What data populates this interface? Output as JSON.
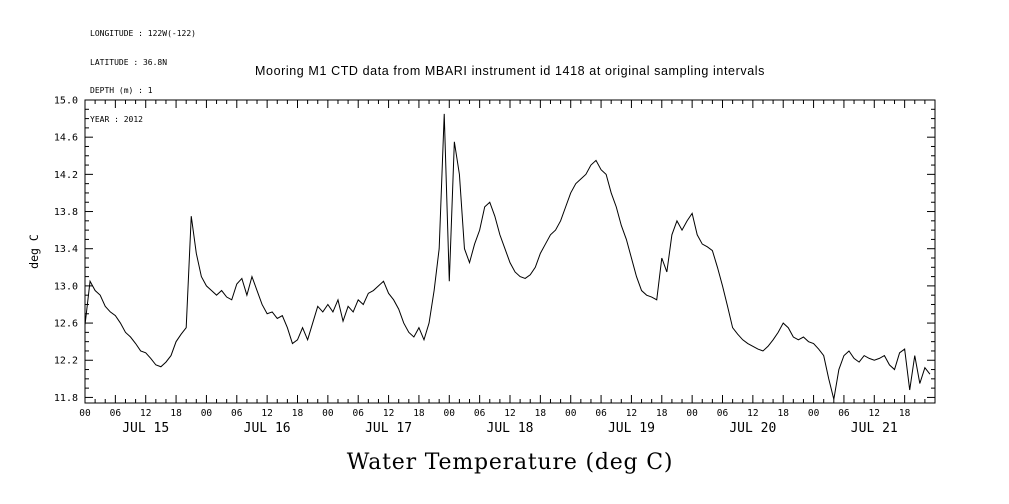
{
  "meta": {
    "longitude": "LONGITUDE : 122W(-122)",
    "latitude": "LATITUDE : 36.8N",
    "depth": "DEPTH (m) : 1",
    "year": "YEAR : 2012"
  },
  "title": "Mooring M1 CTD data from MBARI instrument id 1418 at original sampling intervals",
  "footer_label": "Water Temperature (deg C)",
  "chart_data": {
    "type": "line",
    "title": "Mooring M1 CTD data from MBARI instrument id 1418 at original sampling intervals",
    "series_name": "Water Temperature",
    "xlabel": "Water Temperature (deg C)",
    "ylabel": "deg C",
    "ylim": [
      11.74,
      15.0
    ],
    "yticks": [
      15.0,
      14.6,
      14.2,
      13.8,
      13.4,
      13.0,
      12.6,
      12.2,
      11.8
    ],
    "y_minor_step": 0.1,
    "x_unit": "hours since JUL 15 00:00",
    "x_range": [
      0,
      168
    ],
    "x_start": 0,
    "x_step": 1,
    "x_minor_tick_hours": 2,
    "x_major_tick_hours": 6,
    "hour_labels": [
      "00",
      "06",
      "12",
      "18"
    ],
    "days": [
      "JUL 15",
      "JUL 16",
      "JUL 17",
      "JUL 18",
      "JUL 19",
      "JUL 20",
      "JUL 21"
    ],
    "line_color": "#000000",
    "background": "#ffffff",
    "grid": false,
    "legend": "none",
    "values": [
      12.58,
      13.05,
      12.95,
      12.9,
      12.78,
      12.72,
      12.68,
      12.6,
      12.5,
      12.45,
      12.38,
      12.3,
      12.28,
      12.22,
      12.15,
      12.13,
      12.18,
      12.25,
      12.4,
      12.48,
      12.55,
      13.75,
      13.35,
      13.1,
      13.0,
      12.95,
      12.9,
      12.95,
      12.88,
      12.85,
      13.02,
      13.08,
      12.9,
      13.1,
      12.95,
      12.8,
      12.7,
      12.72,
      12.65,
      12.68,
      12.55,
      12.38,
      12.42,
      12.55,
      12.42,
      12.6,
      12.78,
      12.72,
      12.8,
      12.72,
      12.85,
      12.62,
      12.78,
      12.72,
      12.85,
      12.8,
      12.92,
      12.95,
      13.0,
      13.05,
      12.92,
      12.85,
      12.75,
      12.6,
      12.5,
      12.45,
      12.55,
      12.42,
      12.6,
      12.95,
      13.4,
      14.85,
      13.05,
      14.55,
      14.2,
      13.4,
      13.25,
      13.45,
      13.6,
      13.85,
      13.9,
      13.75,
      13.55,
      13.4,
      13.25,
      13.15,
      13.1,
      13.08,
      13.12,
      13.2,
      13.35,
      13.45,
      13.55,
      13.6,
      13.7,
      13.85,
      14.0,
      14.1,
      14.15,
      14.2,
      14.3,
      14.35,
      14.25,
      14.2,
      14.0,
      13.85,
      13.65,
      13.5,
      13.3,
      13.1,
      12.95,
      12.9,
      12.88,
      12.85,
      13.3,
      13.15,
      13.55,
      13.7,
      13.6,
      13.7,
      13.78,
      13.55,
      13.45,
      13.42,
      13.38,
      13.2,
      13.0,
      12.78,
      12.55,
      12.48,
      12.42,
      12.38,
      12.35,
      12.32,
      12.3,
      12.35,
      12.42,
      12.5,
      12.6,
      12.55,
      12.45,
      12.42,
      12.45,
      12.4,
      12.38,
      12.32,
      12.25,
      12.0,
      11.78,
      12.1,
      12.25,
      12.3,
      12.22,
      12.18,
      12.25,
      12.22,
      12.2,
      12.22,
      12.25,
      12.15,
      12.1,
      12.28,
      12.32,
      11.88,
      12.25,
      11.95,
      12.12,
      12.05
    ]
  }
}
